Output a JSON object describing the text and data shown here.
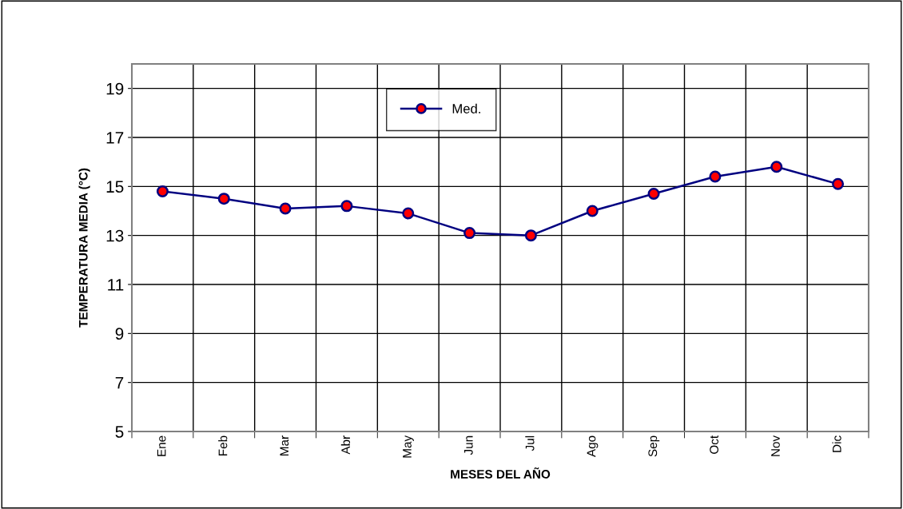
{
  "chart_data": {
    "type": "line",
    "xlabel": "MESES DEL AÑO",
    "ylabel": "TEMPERATURA MEDIA (°C)",
    "categories": [
      "Ene",
      "Feb",
      "Mar",
      "Abr",
      "May",
      "Jun",
      "Jul",
      "Ago",
      "Sep",
      "Oct",
      "Nov",
      "Dic"
    ],
    "series": [
      {
        "name": "Med.",
        "color": "#000080",
        "values": [
          14.8,
          14.5,
          14.1,
          14.2,
          13.9,
          13.1,
          13.0,
          14.0,
          14.7,
          15.4,
          15.8,
          15.1
        ]
      }
    ],
    "ylim": [
      5,
      20
    ],
    "yticks": [
      5,
      7,
      9,
      11,
      13,
      15,
      17,
      19
    ],
    "grid": true,
    "legend": "top",
    "marker": "circle",
    "line_style": "solid"
  }
}
